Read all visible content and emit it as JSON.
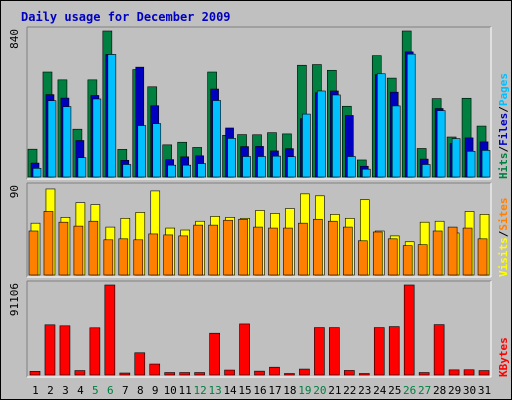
{
  "chart_data": {
    "type": "bar",
    "title": "Daily usage for December 2009",
    "categories": [
      "1",
      "2",
      "3",
      "4",
      "5",
      "6",
      "7",
      "8",
      "9",
      "10",
      "11",
      "12",
      "13",
      "14",
      "15",
      "16",
      "17",
      "18",
      "19",
      "20",
      "21",
      "22",
      "23",
      "24",
      "25",
      "26",
      "27",
      "28",
      "29",
      "30",
      "31"
    ],
    "weekend_days": [
      "5",
      "6",
      "12",
      "13",
      "19",
      "20",
      "26",
      "27"
    ],
    "colors": {
      "background": "#c0c0c0",
      "hits": "#008040",
      "files": "#0000c0",
      "pages": "#00c0ff",
      "visits": "#ffff00",
      "sites": "#ff8000",
      "kbytes": "#ff0000",
      "title": "#0000c0",
      "weekend_label": "#008040"
    },
    "panels": [
      {
        "name": "hits-files-pages",
        "max_label": "840",
        "max": 840,
        "legend": [
          {
            "text": "Hits",
            "color": "#008040"
          },
          {
            "text": "/",
            "color": "#000000"
          },
          {
            "text": "Files",
            "color": "#0000c0"
          },
          {
            "text": "/",
            "color": "#000000"
          },
          {
            "text": "Pages",
            "color": "#00c0ff"
          }
        ],
        "series": [
          {
            "name": "Hits",
            "color": "#008040",
            "values": [
              160,
              604,
              559,
              275,
              559,
              840,
              159,
              618,
              519,
              185,
              200,
              170,
              604,
              240,
              244,
              243,
              255,
              248,
              643,
              647,
              614,
              407,
              98,
              698,
              569,
              840,
              164,
              451,
              230,
              453,
              293
            ]
          },
          {
            "name": "Files",
            "color": "#0000c0",
            "values": [
              80,
              474,
              454,
              210,
              469,
              705,
              96,
              632,
              410,
              100,
              116,
              122,
              506,
              282,
              175,
              176,
              150,
              163,
              336,
              485,
              495,
              354,
              62,
              589,
              488,
              720,
              103,
              394,
              193,
              225,
              202
            ]
          },
          {
            "name": "Pages",
            "color": "#00c0ff",
            "values": [
              50,
              439,
              405,
              111,
              449,
              705,
              72,
              296,
              307,
              68,
              68,
              77,
              440,
              222,
              118,
              118,
              120,
              117,
              362,
              495,
              472,
              118,
              45,
              594,
              409,
              707,
              72,
              382,
              221,
              148,
              153
            ]
          }
        ]
      },
      {
        "name": "visits-sites",
        "max_label": "90",
        "max": 90,
        "legend": [
          {
            "text": "Visits",
            "color": "#ffff00"
          },
          {
            "text": "/",
            "color": "#000000"
          },
          {
            "text": "Sites",
            "color": "#ff8000"
          }
        ],
        "series": [
          {
            "name": "Visits",
            "color": "#ffff00",
            "values": [
              53,
              88,
              59,
              74,
              72,
              49,
              58,
              64,
              86,
              48,
              46,
              55,
              60,
              59,
              58,
              66,
              63,
              68,
              83,
              81,
              62,
              58,
              77,
              45,
              40,
              34,
              54,
              55,
              43,
              65,
              62
            ]
          },
          {
            "name": "Sites",
            "color": "#ff8000",
            "values": [
              45,
              65,
              54,
              50,
              55,
              36,
              37,
              36,
              42,
              41,
              40,
              51,
              51,
              56,
              57,
              49,
              48,
              48,
              53,
              57,
              55,
              49,
              35,
              44,
              37,
              30,
              31,
              45,
              49,
              48,
              37
            ]
          }
        ]
      },
      {
        "name": "kbytes",
        "max_label": "91106",
        "max": 91106,
        "legend": [
          {
            "text": "KBytes",
            "color": "#ff0000"
          }
        ],
        "series": [
          {
            "name": "KBytes",
            "color": "#ff0000",
            "values": [
              3700,
              50800,
              49800,
              4500,
              47800,
              91106,
              2000,
              22500,
              11100,
              2500,
              2500,
              2500,
              42300,
              5000,
              51700,
              3900,
              7900,
              1500,
              6000,
              48000,
              48000,
              4600,
              1500,
              48000,
              49000,
              91106,
              2500,
              51000,
              5200,
              5300,
              4500
            ]
          }
        ]
      }
    ]
  }
}
